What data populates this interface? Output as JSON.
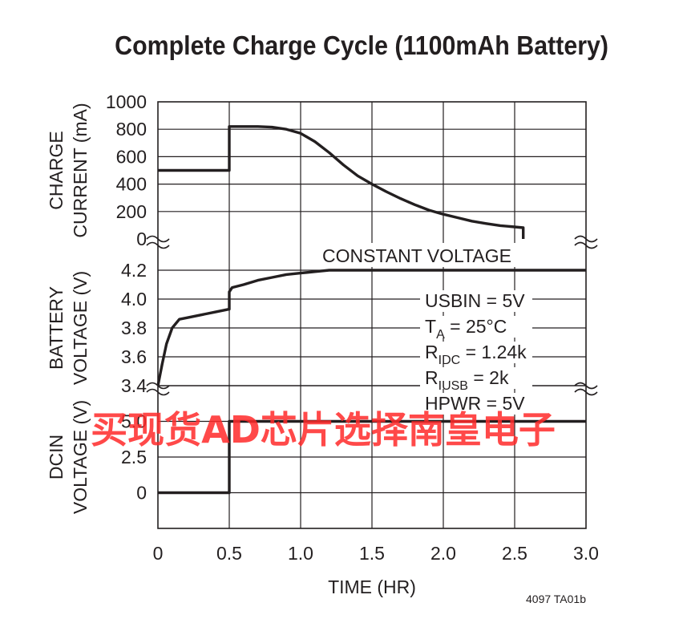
{
  "title": "Complete Charge Cycle (1100mAh Battery)",
  "figure_code": "4097 TA01b",
  "watermark": "买现货AD芯片选择南皇电子",
  "colors": {
    "ink": "#231f20",
    "watermark": "#ff2a2a"
  },
  "chart_data": [
    {
      "type": "line",
      "ylabel_lines": [
        "CHARGE",
        "CURRENT (mA)"
      ],
      "yticks": [
        "1000",
        "800",
        "600",
        "400",
        "200",
        "0"
      ],
      "ylim": [
        0,
        1000
      ],
      "xlim": [
        0,
        3.0
      ],
      "grid": true,
      "series": [
        {
          "x": [
            0,
            0.5,
            0.5,
            0.7,
            0.8,
            0.9,
            1.0,
            1.1,
            1.2,
            1.3,
            1.4,
            1.5,
            1.6,
            1.7,
            1.8,
            1.9,
            2.0,
            2.1,
            2.2,
            2.3,
            2.4,
            2.5,
            2.56,
            2.56
          ],
          "y": [
            500,
            500,
            820,
            820,
            815,
            800,
            770,
            710,
            630,
            540,
            460,
            400,
            345,
            295,
            250,
            210,
            180,
            155,
            130,
            112,
            97,
            88,
            82,
            0
          ]
        }
      ]
    },
    {
      "type": "line",
      "ylabel_lines": [
        "BATTERY",
        "VOLTAGE (V)"
      ],
      "yticks": [
        "4.2",
        "4.0",
        "3.8",
        "3.6",
        "3.4"
      ],
      "ylim": [
        3.4,
        4.2
      ],
      "xlim": [
        0,
        3.0
      ],
      "grid": true,
      "annotations": {
        "constant_voltage": "CONSTANT VOLTAGE",
        "conditions": [
          {
            "main": "USBIN = 5V",
            "sub": "",
            "rest": ""
          },
          {
            "main": "T",
            "sub": "A",
            "rest": " = 25°C"
          },
          {
            "main": "R",
            "sub": "IDC",
            "rest": " = 1.24k"
          },
          {
            "main": "R",
            "sub": "IUSB",
            "rest": " = 2k"
          },
          {
            "main": "HPWR = 5V",
            "sub": "",
            "rest": ""
          }
        ]
      },
      "series": [
        {
          "x": [
            0,
            0.03,
            0.06,
            0.1,
            0.15,
            0.2,
            0.3,
            0.4,
            0.5,
            0.5,
            0.52,
            0.6,
            0.7,
            0.8,
            0.9,
            1.0,
            1.1,
            1.2,
            1.3,
            3.0
          ],
          "y": [
            3.4,
            3.55,
            3.69,
            3.8,
            3.86,
            3.87,
            3.89,
            3.91,
            3.93,
            4.05,
            4.08,
            4.1,
            4.13,
            4.15,
            4.17,
            4.18,
            4.19,
            4.2,
            4.2,
            4.2
          ]
        }
      ]
    },
    {
      "type": "line",
      "ylabel_lines": [
        "DCIN",
        "VOLTAGE (V)"
      ],
      "yticks": [
        "5.0",
        "2.5",
        "0"
      ],
      "ylim": [
        -2.5,
        7.5
      ],
      "xlim": [
        0,
        3.0
      ],
      "xlabel": "TIME (HR)",
      "xticks": [
        "0",
        "0.5",
        "1.0",
        "1.5",
        "2.0",
        "2.5",
        "3.0"
      ],
      "grid": true,
      "series": [
        {
          "x": [
            0,
            0.5,
            0.5,
            3.0
          ],
          "y": [
            0,
            0,
            5.0,
            5.0
          ]
        }
      ]
    }
  ]
}
